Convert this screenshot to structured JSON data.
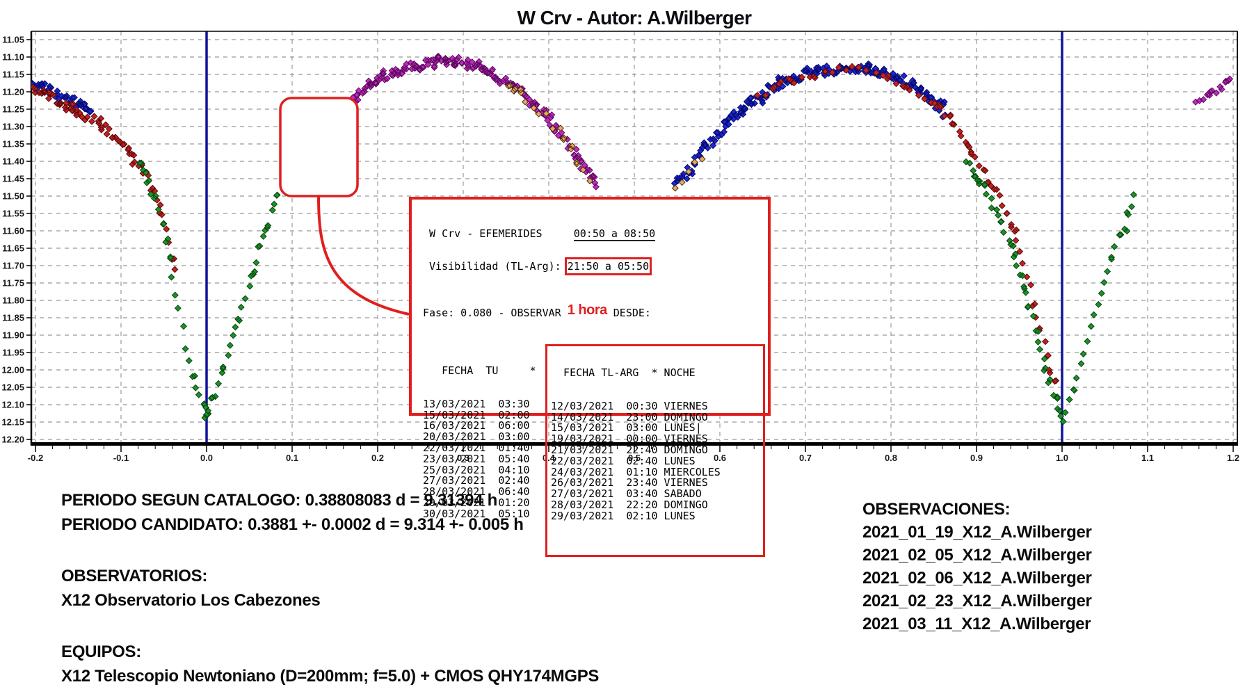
{
  "chart_data": {
    "type": "scatter",
    "title": "W Crv - Autor: A.Wilberger",
    "x_ticks": [
      "-0.2",
      "-0.1",
      "0.0",
      "0.1",
      "0.2",
      "0.3",
      "0.4",
      "0.5",
      "0.6",
      "0.7",
      "0.8",
      "0.9",
      "1.0",
      "1.1",
      "1.2"
    ],
    "x_minor_step": 0.02,
    "x_range": [
      -0.205,
      1.205
    ],
    "y_ticks": [
      "11.05",
      "11.10",
      "11.15",
      "11.20",
      "11.25",
      "11.30",
      "11.35",
      "11.40",
      "11.45",
      "11.50",
      "11.55",
      "11.60",
      "11.65",
      "11.70",
      "11.75",
      "11.80",
      "11.85",
      "11.90",
      "11.95",
      "12.00",
      "12.05",
      "12.10",
      "12.15",
      "12.20"
    ],
    "y_range": [
      11.05,
      12.2
    ],
    "y_inverted": true,
    "grid_on": true,
    "grid_color": "#999999",
    "axis_color": "#000000",
    "phase_marker_color": "#10129b",
    "phase_markers": [
      0,
      1
    ],
    "point_shape": "diamond",
    "series": [
      {
        "name": "blue-left",
        "color": "#2128d0",
        "stroke": "#020870",
        "range": [
          -0.205,
          -0.135
        ],
        "step": 0.0022,
        "jitter": 0.014,
        "anchors": [
          [
            -0.205,
            11.172
          ],
          [
            -0.185,
            11.193
          ],
          [
            -0.165,
            11.215
          ],
          [
            -0.148,
            11.235
          ],
          [
            -0.135,
            11.252
          ]
        ]
      },
      {
        "name": "red-left",
        "color": "#c32222",
        "stroke": "#5e0808",
        "range": [
          -0.205,
          -0.036
        ],
        "step": 0.0032,
        "jitter": 0.013,
        "anchors": [
          [
            -0.205,
            11.19
          ],
          [
            -0.18,
            11.215
          ],
          [
            -0.155,
            11.25
          ],
          [
            -0.13,
            11.285
          ],
          [
            -0.105,
            11.33
          ],
          [
            -0.088,
            11.375
          ],
          [
            -0.072,
            11.43
          ],
          [
            -0.06,
            11.49
          ],
          [
            -0.052,
            11.55
          ],
          [
            -0.046,
            11.62
          ],
          [
            -0.04,
            11.7
          ],
          [
            -0.036,
            11.76
          ]
        ]
      },
      {
        "name": "green-left",
        "color": "#1e9229",
        "stroke": "#06450e",
        "range": [
          -0.08,
          0
        ],
        "step": 0.004,
        "jitter": 0.012,
        "anchors": [
          [
            -0.08,
            11.41
          ],
          [
            -0.068,
            11.46
          ],
          [
            -0.058,
            11.53
          ],
          [
            -0.05,
            11.6
          ],
          [
            -0.044,
            11.68
          ],
          [
            -0.038,
            11.75
          ],
          [
            -0.031,
            11.84
          ],
          [
            -0.024,
            11.93
          ],
          [
            -0.017,
            12.0
          ],
          [
            -0.01,
            12.065
          ],
          [
            -0.004,
            12.11
          ],
          [
            0,
            12.135
          ]
        ]
      },
      {
        "name": "green-rise1",
        "color": "#1e9229",
        "stroke": "#06450e",
        "range": [
          0,
          0.087
        ],
        "step": 0.0035,
        "jitter": 0.012,
        "anchors": [
          [
            0,
            12.135
          ],
          [
            0.005,
            12.105
          ],
          [
            0.012,
            12.055
          ],
          [
            0.02,
            11.995
          ],
          [
            0.028,
            11.93
          ],
          [
            0.036,
            11.865
          ],
          [
            0.044,
            11.8
          ],
          [
            0.052,
            11.74
          ],
          [
            0.062,
            11.66
          ],
          [
            0.072,
            11.585
          ],
          [
            0.08,
            11.53
          ],
          [
            0.087,
            11.49
          ]
        ]
      },
      {
        "name": "magenta-max1",
        "color": "#c32bc3",
        "stroke": "#5c075c",
        "range": [
          0.168,
          0.456
        ],
        "step": 0.0021,
        "jitter": 0.013,
        "anchors": [
          [
            0.168,
            11.228
          ],
          [
            0.185,
            11.193
          ],
          [
            0.2,
            11.168
          ],
          [
            0.215,
            11.15
          ],
          [
            0.235,
            11.13
          ],
          [
            0.255,
            11.117
          ],
          [
            0.275,
            11.11
          ],
          [
            0.295,
            11.113
          ],
          [
            0.315,
            11.128
          ],
          [
            0.335,
            11.152
          ],
          [
            0.355,
            11.178
          ],
          [
            0.375,
            11.22
          ],
          [
            0.395,
            11.268
          ],
          [
            0.415,
            11.323
          ],
          [
            0.432,
            11.383
          ],
          [
            0.447,
            11.44
          ],
          [
            0.456,
            11.47
          ]
        ]
      },
      {
        "name": "blue-max2",
        "color": "#2128d0",
        "stroke": "#020870",
        "range": [
          0.549,
          0.862
        ],
        "step": 0.0021,
        "jitter": 0.014,
        "anchors": [
          [
            0.549,
            11.472
          ],
          [
            0.562,
            11.43
          ],
          [
            0.576,
            11.385
          ],
          [
            0.59,
            11.345
          ],
          [
            0.605,
            11.3
          ],
          [
            0.62,
            11.265
          ],
          [
            0.64,
            11.225
          ],
          [
            0.66,
            11.192
          ],
          [
            0.68,
            11.168
          ],
          [
            0.7,
            11.15
          ],
          [
            0.72,
            11.14
          ],
          [
            0.745,
            11.132
          ],
          [
            0.77,
            11.133
          ],
          [
            0.79,
            11.143
          ],
          [
            0.81,
            11.163
          ],
          [
            0.83,
            11.19
          ],
          [
            0.85,
            11.227
          ],
          [
            0.862,
            11.255
          ]
        ]
      },
      {
        "name": "orange-desc1",
        "color": "#e9a468",
        "stroke": "#4a3005",
        "range": [
          0.352,
          0.455
        ],
        "step": 0.0075,
        "jitter": 0.012,
        "anchors": [
          [
            0.352,
            11.175
          ],
          [
            0.375,
            11.22
          ],
          [
            0.395,
            11.268
          ],
          [
            0.415,
            11.323
          ],
          [
            0.432,
            11.383
          ],
          [
            0.447,
            11.44
          ],
          [
            0.455,
            11.468
          ]
        ]
      },
      {
        "name": "orange-rise2",
        "color": "#e9a468",
        "stroke": "#4a3005",
        "range": [
          0.548,
          0.578
        ],
        "step": 0.0075,
        "jitter": 0.012,
        "anchors": [
          [
            0.548,
            11.475
          ],
          [
            0.558,
            11.445
          ],
          [
            0.568,
            11.415
          ],
          [
            0.578,
            11.385
          ]
        ]
      },
      {
        "name": "red-max2",
        "color": "#c32222",
        "stroke": "#5e0808",
        "range": [
          0.645,
          0.862
        ],
        "step": 0.0085,
        "jitter": 0.012,
        "anchors": [
          [
            0.645,
            11.21
          ],
          [
            0.67,
            11.18
          ],
          [
            0.7,
            11.155
          ],
          [
            0.73,
            11.14
          ],
          [
            0.755,
            11.133
          ],
          [
            0.78,
            11.14
          ],
          [
            0.8,
            11.158
          ],
          [
            0.82,
            11.185
          ],
          [
            0.84,
            11.215
          ],
          [
            0.862,
            11.25
          ]
        ]
      },
      {
        "name": "red-desc2",
        "color": "#c32222",
        "stroke": "#5e0808",
        "range": [
          0.855,
          0.996
        ],
        "step": 0.004,
        "jitter": 0.011,
        "anchors": [
          [
            0.855,
            11.24
          ],
          [
            0.87,
            11.28
          ],
          [
            0.885,
            11.33
          ],
          [
            0.9,
            11.39
          ],
          [
            0.912,
            11.44
          ],
          [
            0.925,
            11.49
          ],
          [
            0.938,
            11.565
          ],
          [
            0.95,
            11.65
          ],
          [
            0.962,
            11.75
          ],
          [
            0.972,
            11.85
          ],
          [
            0.98,
            11.93
          ],
          [
            0.988,
            12.01
          ],
          [
            0.996,
            12.09
          ]
        ]
      },
      {
        "name": "green-desc2",
        "color": "#1e9229",
        "stroke": "#06450e",
        "range": [
          0.888,
          1
        ],
        "step": 0.0035,
        "jitter": 0.011,
        "anchors": [
          [
            0.888,
            11.4
          ],
          [
            0.9,
            11.44
          ],
          [
            0.912,
            11.49
          ],
          [
            0.924,
            11.545
          ],
          [
            0.935,
            11.605
          ],
          [
            0.945,
            11.675
          ],
          [
            0.954,
            11.745
          ],
          [
            0.962,
            11.82
          ],
          [
            0.97,
            11.895
          ],
          [
            0.978,
            11.965
          ],
          [
            0.985,
            12.025
          ],
          [
            0.992,
            12.085
          ],
          [
            1,
            12.14
          ]
        ]
      },
      {
        "name": "green-rise2",
        "color": "#1e9229",
        "stroke": "#06450e",
        "range": [
          1,
          1.088
        ],
        "step": 0.0042,
        "jitter": 0.011,
        "anchors": [
          [
            1,
            12.14
          ],
          [
            1.006,
            12.105
          ],
          [
            1.013,
            12.05
          ],
          [
            1.021,
            11.985
          ],
          [
            1.03,
            11.91
          ],
          [
            1.04,
            11.83
          ],
          [
            1.05,
            11.75
          ],
          [
            1.06,
            11.675
          ],
          [
            1.07,
            11.6
          ],
          [
            1.079,
            11.535
          ],
          [
            1.088,
            11.475
          ]
        ]
      },
      {
        "name": "magenta-end",
        "color": "#c32bc3",
        "stroke": "#5c075c",
        "range": [
          1.158,
          1.197
        ],
        "step": 0.0038,
        "jitter": 0.009,
        "anchors": [
          [
            1.158,
            11.225
          ],
          [
            1.168,
            11.212
          ],
          [
            1.178,
            11.198
          ],
          [
            1.188,
            11.19
          ],
          [
            1.197,
            11.172
          ]
        ]
      }
    ],
    "annotations": {
      "empty_note_box": {
        "phase_range": [
          0.086,
          0.176
        ],
        "mag_range": [
          11.218,
          11.5
        ]
      },
      "note_box_color": "#e01f1f"
    }
  },
  "ephemerides": {
    "line1_label": " W Crv - EFEMERIDES",
    "line1_gap": "     ",
    "line1_time": "00:50 a 08:50",
    "line2_label": " Visibilidad (TL-Arg): ",
    "line2_time": "21:50 a 05:50",
    "fase_prefix": "Fase: 0.080 - OBSERVAR ",
    "fase_highlight": "1 hora",
    "fase_suffix": " DESDE:",
    "header_left": "   FECHA  TU     *",
    "header_right": "  FECHA TL-ARG  * NOCHE",
    "rows": [
      {
        "tu": "13/03/2021  03:30",
        "local": "12/03/2021  00:30",
        "night": "VIERNES",
        "cursor": false
      },
      {
        "tu": "15/03/2021  02:00",
        "local": "14/03/2021  23:00",
        "night": "DOMINGO",
        "cursor": false
      },
      {
        "tu": "16/03/2021  06:00",
        "local": "15/03/2021  03:00",
        "night": "LUNES",
        "cursor": true
      },
      {
        "tu": "20/03/2021  03:00",
        "local": "19/03/2021  00:00",
        "night": "VIERNES",
        "cursor": false
      },
      {
        "tu": "22/03/2021  01:40",
        "local": "21/03/2021  22:40",
        "night": "DOMINGO",
        "cursor": false
      },
      {
        "tu": "23/03/2021  05:40",
        "local": "22/03/2021  02:40",
        "night": "LUNES",
        "cursor": false
      },
      {
        "tu": "25/03/2021  04:10",
        "local": "24/03/2021  01:10",
        "night": "MIERCOLES",
        "cursor": false
      },
      {
        "tu": "27/03/2021  02:40",
        "local": "26/03/2021  23:40",
        "night": "VIERNES",
        "cursor": false
      },
      {
        "tu": "28/03/2021  06:40",
        "local": "27/03/2021  03:40",
        "night": "SABADO",
        "cursor": false
      },
      {
        "tu": "29/03/2021  01:20",
        "local": "28/03/2021  22:20",
        "night": "DOMINGO",
        "cursor": false
      },
      {
        "tu": "30/03/2021  05:10",
        "local": "29/03/2021  02:10",
        "night": "LUNES",
        "cursor": false
      }
    ]
  },
  "info": {
    "periodo_catalogo": "PERIODO SEGUN CATALOGO: 0.38808083 d = 9.31394 h",
    "periodo_candidato": "PERIODO CANDIDATO: 0.3881 +- 0.0002 d = 9.314 +- 0.005 h",
    "observatorios_label": "OBSERVATORIOS:",
    "observatorios": [
      "X12 Observatorio Los Cabezones"
    ],
    "equipos_label": "EQUIPOS:",
    "equipos": [
      "X12 Telescopio Newtoniano (D=200mm; f=5.0) + CMOS QHY174MGPS"
    ],
    "observaciones_label": "OBSERVACIONES:",
    "observaciones": [
      "2021_01_19_X12_A.Wilberger",
      "2021_02_05_X12_A.Wilberger",
      "2021_02_06_X12_A.Wilberger",
      "2021_02_23_X12_A.Wilberger",
      "2021_03_11_X12_A.Wilberger"
    ]
  },
  "colors": {
    "accent_red": "#e01f1f",
    "phase_line_navy": "#10129b"
  }
}
